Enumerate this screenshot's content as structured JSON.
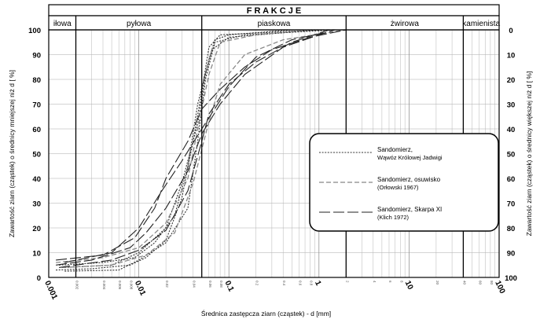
{
  "chart_data": {
    "type": "line",
    "x_scale": "log",
    "x_range": [
      0.001,
      100
    ],
    "ylim": [
      0,
      100
    ],
    "xlabel": "Średnica zastępcza ziarn (cząstek) - d [mm]",
    "ylabel_left": "Zawartość ziarn (cząstek) o średnicy mniejszej niż d [ %]",
    "ylabel_right": "Zawartość ziarn (cząstek) o średnicy większej niż d [ %]",
    "header": "F R A K C J E",
    "fractions": [
      {
        "label": "iłowa",
        "from": 0.001,
        "to": 0.002
      },
      {
        "label": "pyłowa",
        "from": 0.002,
        "to": 0.05
      },
      {
        "label": "piaskowa",
        "from": 0.05,
        "to": 2
      },
      {
        "label": "żwirowa",
        "from": 2,
        "to": 40
      },
      {
        "label": "kamienista",
        "from": 40,
        "to": 100
      }
    ],
    "x_major_ticks": [
      {
        "value": 0.001,
        "label": "0.001"
      },
      {
        "value": 0.01,
        "label": "0.01"
      },
      {
        "value": 0.1,
        "label": "0.1"
      },
      {
        "value": 1,
        "label": "1"
      },
      {
        "value": 10,
        "label": "10"
      },
      {
        "value": 100,
        "label": "100"
      }
    ],
    "x_minor_ticks": [
      {
        "value": 0.002,
        "label": "0.002"
      },
      {
        "value": 0.004,
        "label": "0.004"
      },
      {
        "value": 0.006,
        "label": "0.006"
      },
      {
        "value": 0.008,
        "label": "0.008"
      },
      {
        "value": 0.02,
        "label": "0.02"
      },
      {
        "value": 0.04,
        "label": "0.04"
      },
      {
        "value": 0.06,
        "label": "0.06"
      },
      {
        "value": 0.08,
        "label": "0.08"
      },
      {
        "value": 0.2,
        "label": "0.2"
      },
      {
        "value": 0.4,
        "label": "0.4"
      },
      {
        "value": 0.6,
        "label": "0.6"
      },
      {
        "value": 0.8,
        "label": "0.8"
      },
      {
        "value": 2,
        "label": "2"
      },
      {
        "value": 4,
        "label": "4"
      },
      {
        "value": 6,
        "label": "6"
      },
      {
        "value": 8,
        "label": "8"
      },
      {
        "value": 20,
        "label": "20"
      },
      {
        "value": 40,
        "label": "40"
      },
      {
        "value": 60,
        "label": "60"
      },
      {
        "value": 80,
        "label": "80"
      }
    ],
    "y_ticks_left": [
      "0",
      "10",
      "20",
      "30",
      "40",
      "50",
      "60",
      "70",
      "80",
      "90",
      "100"
    ],
    "y_ticks_right": [
      "100",
      "90",
      "80",
      "70",
      "60",
      "50",
      "40",
      "30",
      "20",
      "10",
      "0"
    ],
    "grid": true,
    "legend_position": "right",
    "legend": [
      {
        "line1": "Sandomierz,",
        "line2": "Wąwóz Królowej Jadwigi",
        "style": "dotted",
        "color": "#333333"
      },
      {
        "line1": "Sandomierz, osuwisko",
        "line2": "(Orłowski 1967)",
        "style": "dashed-light",
        "color": "#888888"
      },
      {
        "line1": "Sandomierz, Skarpa XI",
        "line2": "(Klich 1972)",
        "style": "long-dash",
        "color": "#222222"
      }
    ],
    "series": [
      {
        "style": "dotted",
        "points": [
          [
            0.0012,
            3
          ],
          [
            0.003,
            3.5
          ],
          [
            0.008,
            5
          ],
          [
            0.012,
            8
          ],
          [
            0.02,
            15
          ],
          [
            0.03,
            32
          ],
          [
            0.04,
            55
          ],
          [
            0.05,
            75
          ],
          [
            0.06,
            93
          ],
          [
            0.08,
            98
          ],
          [
            0.3,
            99
          ],
          [
            1.0,
            100
          ]
        ]
      },
      {
        "style": "dotted",
        "points": [
          [
            0.0013,
            5
          ],
          [
            0.004,
            6
          ],
          [
            0.009,
            8
          ],
          [
            0.015,
            14
          ],
          [
            0.025,
            25
          ],
          [
            0.035,
            45
          ],
          [
            0.045,
            70
          ],
          [
            0.06,
            88
          ],
          [
            0.07,
            96
          ],
          [
            0.1,
            98
          ],
          [
            0.5,
            100
          ]
        ]
      },
      {
        "style": "dotted",
        "points": [
          [
            0.0015,
            4
          ],
          [
            0.005,
            5
          ],
          [
            0.01,
            10
          ],
          [
            0.02,
            20
          ],
          [
            0.03,
            38
          ],
          [
            0.045,
            62
          ],
          [
            0.055,
            82
          ],
          [
            0.065,
            92
          ],
          [
            0.1,
            97
          ],
          [
            1.0,
            100
          ]
        ]
      },
      {
        "style": "dotted",
        "points": [
          [
            0.0015,
            2.5
          ],
          [
            0.006,
            3
          ],
          [
            0.01,
            7
          ],
          [
            0.02,
            14
          ],
          [
            0.035,
            28
          ],
          [
            0.045,
            55
          ],
          [
            0.055,
            80
          ],
          [
            0.07,
            95
          ],
          [
            0.15,
            98
          ],
          [
            1.5,
            100
          ]
        ]
      },
      {
        "style": "dashed-light",
        "points": [
          [
            0.0012,
            6
          ],
          [
            0.004,
            8
          ],
          [
            0.01,
            12
          ],
          [
            0.02,
            22
          ],
          [
            0.035,
            40
          ],
          [
            0.05,
            68
          ],
          [
            0.06,
            82
          ],
          [
            0.08,
            95
          ],
          [
            0.2,
            98
          ],
          [
            0.8,
            100
          ]
        ]
      },
      {
        "style": "dashed-light",
        "points": [
          [
            0.0014,
            4
          ],
          [
            0.005,
            5
          ],
          [
            0.012,
            9
          ],
          [
            0.025,
            18
          ],
          [
            0.04,
            38
          ],
          [
            0.06,
            63
          ],
          [
            0.08,
            78
          ],
          [
            0.15,
            90
          ],
          [
            0.4,
            96
          ],
          [
            2.0,
            100
          ]
        ]
      },
      {
        "style": "long-dash",
        "points": [
          [
            0.0012,
            7
          ],
          [
            0.004,
            9
          ],
          [
            0.009,
            16
          ],
          [
            0.015,
            28
          ],
          [
            0.02,
            40
          ],
          [
            0.035,
            55
          ],
          [
            0.05,
            68
          ],
          [
            0.08,
            76
          ],
          [
            0.15,
            85
          ],
          [
            0.3,
            92
          ],
          [
            0.8,
            97
          ],
          [
            2.0,
            100
          ]
        ]
      },
      {
        "style": "long-dash",
        "points": [
          [
            0.0012,
            5
          ],
          [
            0.003,
            7
          ],
          [
            0.008,
            12
          ],
          [
            0.012,
            18
          ],
          [
            0.02,
            28
          ],
          [
            0.035,
            43
          ],
          [
            0.05,
            58
          ],
          [
            0.08,
            70
          ],
          [
            0.15,
            82
          ],
          [
            0.4,
            93
          ],
          [
            1.0,
            98
          ],
          [
            1.5,
            100
          ]
        ]
      },
      {
        "style": "long-dash",
        "points": [
          [
            0.0013,
            4
          ],
          [
            0.005,
            7
          ],
          [
            0.01,
            11
          ],
          [
            0.02,
            19
          ],
          [
            0.035,
            35
          ],
          [
            0.05,
            55
          ],
          [
            0.06,
            66
          ],
          [
            0.1,
            78
          ],
          [
            0.2,
            87
          ],
          [
            0.5,
            95
          ],
          [
            1.3,
            100
          ]
        ]
      },
      {
        "style": "long-dash",
        "points": [
          [
            0.0015,
            6
          ],
          [
            0.005,
            10
          ],
          [
            0.01,
            20
          ],
          [
            0.018,
            35
          ],
          [
            0.03,
            47
          ],
          [
            0.05,
            60
          ],
          [
            0.1,
            77
          ],
          [
            0.2,
            89
          ],
          [
            0.5,
            96
          ],
          [
            1.2,
            99
          ]
        ]
      }
    ]
  }
}
